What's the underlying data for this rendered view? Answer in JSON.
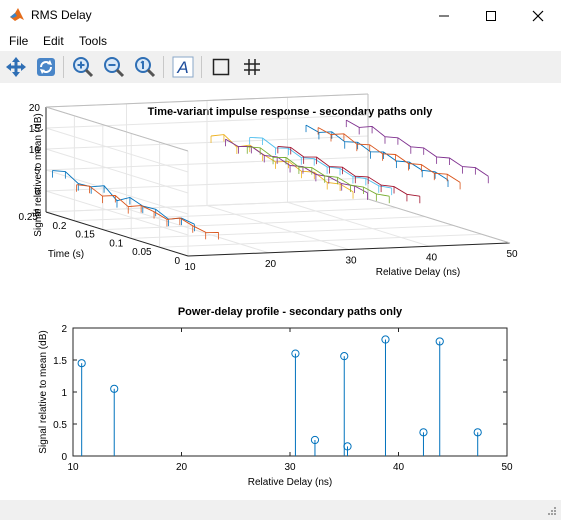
{
  "window": {
    "title": "RMS Delay"
  },
  "menu": {
    "file": "File",
    "edit": "Edit",
    "tools": "Tools"
  },
  "toolbar": {
    "buttons": [
      "pan-icon",
      "rotate-icon",
      "zoom-in-icon",
      "zoom-out-icon",
      "zoom-reset-icon",
      "insert-text-icon",
      "box-icon",
      "grid-icon"
    ],
    "text_glyph": "A"
  },
  "colors": {
    "stem": "#0072bd",
    "axes": "#262626",
    "grid": "#e6e6e6"
  },
  "chart_data": [
    {
      "type": "surface-3d-lines",
      "title": "Time-variant impulse response - secondary paths only",
      "xlabel": "Relative Delay (ns)",
      "ylabel": "Time (s)",
      "zlabel": "Signal relative to mean (dB)",
      "xticks": [
        10,
        20,
        30,
        40,
        50
      ],
      "yticks": [
        0,
        0.05,
        0.1,
        0.15,
        0.2,
        0.25
      ],
      "zticks": [
        -5,
        0,
        5,
        10,
        15,
        20
      ],
      "xlim": [
        10,
        50
      ],
      "ylim": [
        0,
        0.25
      ],
      "zlim": [
        -5,
        20
      ],
      "grid": true,
      "series": [
        {
          "x": 10.8,
          "color": "#0072bd",
          "z": [
            4.8,
            5.5,
            3.6,
            3.8,
            5.0,
            2.4,
            4.1,
            3.0,
            3.2,
            1.8,
            3.0,
            2.5
          ]
        },
        {
          "x": 13.8,
          "color": "#d95319",
          "z": [
            1.2,
            1.8,
            0.4,
            1.5,
            -0.2,
            1.0,
            0.5,
            -0.4,
            0.9,
            0.0,
            -0.6,
            0.3
          ]
        },
        {
          "x": 30.5,
          "color": "#edb120",
          "z": [
            11.5,
            12.8,
            10.8,
            12.2,
            11.0,
            10.1,
            11.2,
            9.8,
            10.5,
            9.0,
            9.6,
            8.7
          ]
        },
        {
          "x": 32.3,
          "color": "#7e2f8e",
          "z": [
            10.6,
            9.8,
            10.8,
            9.6,
            10.2,
            9.1,
            9.8,
            8.9,
            9.3,
            8.6,
            9.0,
            8.3
          ]
        },
        {
          "x": 35.0,
          "color": "#77ac30",
          "z": [
            8.6,
            9.3,
            8.0,
            8.9,
            7.6,
            8.4,
            7.4,
            8.0,
            7.1,
            7.6,
            6.9,
            7.3
          ]
        },
        {
          "x": 35.3,
          "color": "#4dbeee",
          "z": [
            10.8,
            11.6,
            10.2,
            11.1,
            9.8,
            10.5,
            9.5,
            10.1,
            9.1,
            9.6,
            8.8,
            9.2
          ]
        },
        {
          "x": 38.8,
          "color": "#a2142f",
          "z": [
            8.4,
            9.1,
            7.8,
            8.7,
            7.4,
            8.2,
            7.0,
            7.8,
            6.8,
            7.4,
            6.5,
            7.0
          ]
        },
        {
          "x": 42.3,
          "color": "#0072bd",
          "z": [
            13.2,
            12.4,
            13.5,
            12.1,
            12.9,
            11.6,
            12.5,
            11.3,
            12.0,
            11.0,
            11.6,
            10.6
          ]
        },
        {
          "x": 43.8,
          "color": "#d95319",
          "z": [
            12.5,
            11.8,
            12.9,
            11.4,
            12.2,
            11.0,
            11.8,
            10.6,
            11.3,
            10.2,
            10.9,
            9.9
          ]
        },
        {
          "x": 47.3,
          "color": "#7e2f8e",
          "z": [
            14.0,
            13.2,
            14.4,
            12.9,
            13.6,
            12.4,
            13.1,
            11.9,
            12.6,
            11.5,
            12.2,
            11.1
          ]
        }
      ]
    },
    {
      "type": "stem",
      "title": "Power-delay profile - secondary paths only",
      "xlabel": "Relative Delay (ns)",
      "ylabel": "Signal relative to mean (dB)",
      "xlim": [
        10,
        50
      ],
      "ylim": [
        0,
        2
      ],
      "xticks": [
        10,
        20,
        30,
        40,
        50
      ],
      "yticks": [
        0,
        0.5,
        1,
        1.5,
        2
      ],
      "x": [
        10.8,
        13.8,
        30.5,
        32.3,
        35.0,
        35.3,
        38.8,
        42.3,
        43.8,
        47.3
      ],
      "values": [
        1.45,
        1.05,
        1.6,
        0.25,
        1.56,
        0.15,
        1.82,
        0.37,
        1.79,
        0.37
      ]
    }
  ]
}
